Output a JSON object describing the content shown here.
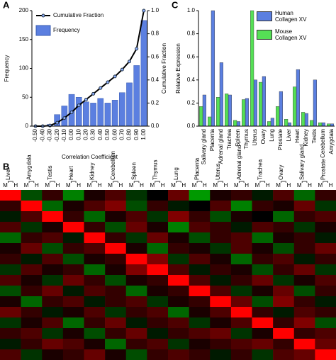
{
  "panels": [
    "A",
    "B",
    "C"
  ],
  "chart_data": [
    {
      "type": "bar-line",
      "xlabel": "Correlation Coefficient",
      "ylabel": "Frequency",
      "y2label": "Cumulative Fraction",
      "categories": [
        "-0.50",
        "-0.40",
        "-0.30",
        "-0.20",
        "-0.10",
        "0.00",
        "0.10",
        "0.20",
        "0.30",
        "0.40",
        "0.50",
        "0.60",
        "0.70",
        "0.80",
        "0.90",
        "1.00"
      ],
      "series": [
        {
          "name": "Frequency",
          "color": "#5b7fe0",
          "kind": "bar",
          "values": [
            0,
            0,
            3,
            20,
            35,
            55,
            50,
            42,
            40,
            48,
            40,
            45,
            58,
            75,
            105,
            183
          ]
        },
        {
          "name": "Cumulative Fraction",
          "color": "#000000",
          "kind": "line",
          "axis": "y2",
          "values": [
            0,
            0,
            0.005,
            0.03,
            0.07,
            0.12,
            0.18,
            0.23,
            0.28,
            0.33,
            0.38,
            0.43,
            0.49,
            0.56,
            0.67,
            1.0
          ]
        }
      ],
      "ylim": [
        0,
        200
      ],
      "yticks": [
        0,
        50,
        100,
        150,
        200
      ],
      "y2lim": [
        0,
        1
      ],
      "y2ticks": [
        {
          "value": 0,
          "label": "0.0"
        },
        {
          "value": 0.2,
          "label": "0.2"
        },
        {
          "value": 0.4,
          "label": "0.4"
        },
        {
          "value": 0.6,
          "label": "0.6"
        },
        {
          "value": 0.8,
          "label": "0.8"
        },
        {
          "value": 1,
          "label": "1.0"
        }
      ]
    },
    {
      "type": "grouped-bar",
      "ylabel": "Relative Expression",
      "categories": [
        "Salivary gland",
        "Placenta",
        "Adrenal gland",
        "Trachea",
        "Spleen",
        "Thymus",
        "Uterus",
        "Ovary",
        "Lung",
        "Prostate",
        "Liver",
        "Heart",
        "Kidney",
        "Testis",
        "Cerebellum",
        "Amygdala"
      ],
      "series": [
        {
          "name": "Human Collagen XV",
          "color": "#5b7fe0",
          "values": [
            0.27,
            1.0,
            0.55,
            0.27,
            0.04,
            0.24,
            0.4,
            0.43,
            0.07,
            0.3,
            0.03,
            0.49,
            0.11,
            0.4,
            0.03,
            0.02
          ]
        },
        {
          "name": "Mouse Collagen XV",
          "color": "#55e055",
          "values": [
            0.17,
            0.08,
            0.25,
            0.28,
            0.05,
            0.23,
            1.0,
            0.38,
            0.04,
            0.17,
            0.06,
            0.34,
            0.12,
            0.05,
            0.03,
            0.02
          ]
        }
      ],
      "ylim": [
        0,
        1
      ],
      "yticks": [
        {
          "value": 0,
          "label": "0.0"
        },
        {
          "value": 0.2,
          "label": "0.2"
        },
        {
          "value": 0.4,
          "label": "0.4"
        },
        {
          "value": 0.6,
          "label": "0.6"
        },
        {
          "value": 0.8,
          "label": "0.8"
        },
        {
          "value": 1,
          "label": "1.0"
        }
      ]
    },
    {
      "type": "heatmap",
      "categories": [
        "Liver",
        "Amygdala",
        "Testis",
        "Heart",
        "Kidney",
        "Cerebellum",
        "Spleen",
        "Thymus",
        "Lung",
        "Placenta",
        "Uterus",
        "Adrenal gland",
        "Trachea",
        "Ovary",
        "Salivary gland",
        "Prostate"
      ],
      "subcolumns": [
        "M",
        "H"
      ],
      "values": [
        [
          1,
          -0.3,
          0.2,
          -0.5,
          0.1,
          0.3,
          -0.2,
          0,
          0.4,
          -0.6,
          0.1,
          0.2,
          -0.1,
          0.3,
          -0.4,
          0.2
        ],
        [
          0.2,
          1,
          -0.4,
          0.1,
          0.3,
          0.5,
          -0.3,
          0.2,
          -0.1,
          0,
          0.3,
          -0.5,
          0.2,
          0.1,
          0.4,
          -0.2
        ],
        [
          -0.1,
          0.3,
          1,
          0.2,
          -0.4,
          0.1,
          0.3,
          -0.2,
          0.5,
          0.2,
          -0.3,
          0.1,
          0,
          -0.4,
          0.2,
          0.3
        ],
        [
          0.3,
          -0.2,
          0.1,
          1,
          0.2,
          -0.3,
          0.4,
          0.1,
          -0.5,
          0.3,
          0.2,
          -0.1,
          0.3,
          0.2,
          -0.2,
          0.1
        ],
        [
          -0.4,
          0.2,
          0.3,
          -0.1,
          1,
          0.2,
          -0.2,
          0.4,
          0.1,
          -0.3,
          0.2,
          0.3,
          -0.4,
          0.1,
          0.2,
          -0.1
        ],
        [
          0.1,
          0.4,
          -0.3,
          0.2,
          0.3,
          1,
          0.1,
          -0.4,
          0.2,
          0.1,
          -0.2,
          0.3,
          0.1,
          -0.3,
          0.2,
          0.4
        ],
        [
          0.2,
          -0.1,
          0.3,
          -0.3,
          0.1,
          0.2,
          1,
          0.5,
          -0.2,
          0.3,
          0.1,
          -0.4,
          0.2,
          0.3,
          -0.1,
          0.2
        ],
        [
          -0.2,
          0.3,
          0.1,
          0.2,
          -0.4,
          0.1,
          0.5,
          1,
          0.3,
          -0.1,
          0.2,
          0.1,
          -0.3,
          0.2,
          0.4,
          -0.2
        ],
        [
          0.3,
          0.1,
          -0.2,
          0.4,
          0.2,
          -0.3,
          0.1,
          0.2,
          1,
          0.3,
          -0.1,
          0.2,
          0.4,
          -0.2,
          0.1,
          0.3
        ],
        [
          -0.3,
          0.2,
          0.4,
          -0.1,
          0.3,
          0.2,
          -0.4,
          0.1,
          0.2,
          1,
          0.3,
          -0.2,
          0.1,
          0.4,
          -0.3,
          0.2
        ],
        [
          0.1,
          -0.4,
          0.2,
          0.3,
          -0.1,
          0.2,
          0.3,
          -0.2,
          0.1,
          0.2,
          1,
          0.4,
          -0.3,
          0.5,
          0.2,
          -0.1
        ],
        [
          0.4,
          0.2,
          -0.1,
          0.1,
          0.3,
          -0.2,
          0.2,
          0.3,
          -0.4,
          0.1,
          0.3,
          1,
          0.2,
          -0.1,
          0.3,
          0.2
        ],
        [
          -0.2,
          0.1,
          0.3,
          -0.4,
          0.2,
          0.4,
          -0.1,
          0.2,
          0.3,
          -0.2,
          0.1,
          0.3,
          1,
          0.2,
          0.5,
          -0.3
        ],
        [
          0.2,
          0.3,
          -0.2,
          0.1,
          -0.3,
          0.2,
          0.4,
          -0.1,
          0.2,
          0.3,
          0.4,
          -0.2,
          0.1,
          1,
          0.2,
          0.3
        ],
        [
          -0.1,
          0.2,
          0.4,
          0.3,
          0.1,
          -0.4,
          0.2,
          0.3,
          -0.2,
          0.1,
          0.2,
          0.3,
          0.4,
          0.2,
          1,
          0.4
        ],
        [
          0.3,
          -0.2,
          0.1,
          0.2,
          0.4,
          0.1,
          -0.3,
          0.2,
          0.3,
          0.2,
          -0.1,
          0.2,
          -0.2,
          0.3,
          0.4,
          1
        ]
      ]
    }
  ]
}
